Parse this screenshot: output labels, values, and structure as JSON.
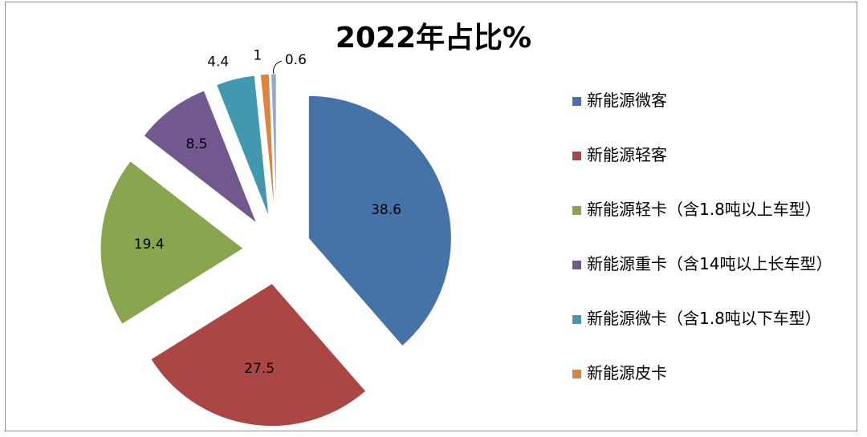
{
  "chart_data": {
    "type": "pie",
    "title": "2022年占比%",
    "categories": [
      "新能源微客",
      "新能源轻客",
      "新能源轻卡（含1.8吨以上车型）",
      "新能源重卡（含14吨以上长车型）",
      "新能源微卡（含1.8吨以下车型）",
      "新能源皮卡",
      ""
    ],
    "values": [
      38.6,
      27.5,
      19.4,
      8.5,
      4.4,
      1,
      0.6
    ],
    "data_labels": [
      "38.6",
      "27.5",
      "19.4",
      "8.5",
      "4.4",
      "1",
      "0.6"
    ],
    "colors": [
      "#4572a7",
      "#aa4643",
      "#89a54e",
      "#71588f",
      "#4198af",
      "#db843d",
      "#93a9cf"
    ],
    "exploded": true,
    "legend_position": "right"
  },
  "legend": {
    "items": [
      {
        "label": "新能源微客",
        "color": "#4572a7"
      },
      {
        "label": "新能源轻客",
        "color": "#aa4643"
      },
      {
        "label": "新能源轻卡（含1.8吨以上车型）",
        "color": "#89a54e"
      },
      {
        "label": "新能源重卡（含14吨以上长车型）",
        "color": "#71588f"
      },
      {
        "label": "新能源微卡（含1.8吨以下车型）",
        "color": "#4198af"
      },
      {
        "label": "新能源皮卡",
        "color": "#db843d"
      }
    ]
  }
}
